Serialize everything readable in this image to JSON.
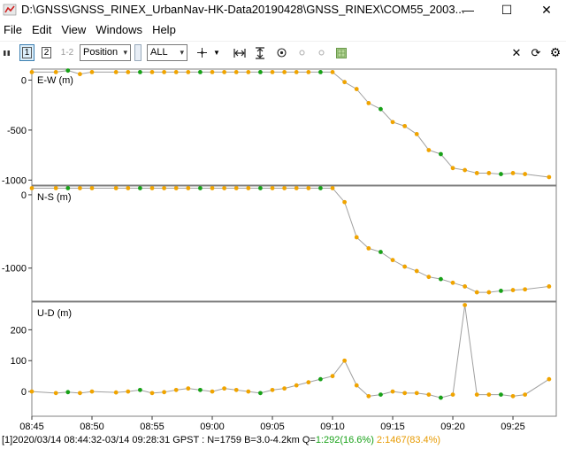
{
  "window": {
    "title": "D:\\GNSS\\GNSS_RINEX_UrbanNav-HK-Data20190428\\GNSS_RINEX\\COM55_2003...",
    "minimize_glyph": "—",
    "maximize_glyph": "☐",
    "close_glyph": "✕"
  },
  "menu": [
    "File",
    "Edit",
    "View",
    "Windows",
    "Help"
  ],
  "toolbar": {
    "plot1_label": "1",
    "plot2_label": "2",
    "plot12_label": "1-2",
    "plot_type_value": "Position",
    "sat_select_value": "ALL",
    "icons": [
      "pause-icon",
      "crosshair-icon",
      "fit-horizontal-icon",
      "fit-vertical-icon",
      "center-icon",
      "dot-icon",
      "map-icon",
      "close-icon",
      "reload-icon",
      "gear-icon"
    ]
  },
  "colors": {
    "q1": "#17a117",
    "q2": "#f0a400",
    "line": "#a0a0a0",
    "axis": "#808080"
  },
  "chart_data": [
    {
      "type": "scatter",
      "title": "E-W (m)",
      "yticks": [
        0,
        -500,
        -1000
      ],
      "ylim": [
        -1050,
        110
      ],
      "x": [
        "08:45",
        "08:47",
        "08:48",
        "08:49",
        "08:50",
        "08:52",
        "08:53",
        "08:54",
        "08:55",
        "08:56",
        "08:57",
        "08:58",
        "08:59",
        "09:00",
        "09:01",
        "09:02",
        "09:03",
        "09:04",
        "09:05",
        "09:06",
        "09:07",
        "09:08",
        "09:09",
        "09:10",
        "09:11",
        "09:12",
        "09:13",
        "09:14",
        "09:15",
        "09:16",
        "09:17",
        "09:18",
        "09:19",
        "09:20",
        "09:21",
        "09:22",
        "09:23",
        "09:24",
        "09:25",
        "09:26",
        "09:28"
      ],
      "series": [
        {
          "values": [
            80,
            80,
            95,
            60,
            80,
            80,
            80,
            80,
            80,
            80,
            80,
            80,
            80,
            80,
            80,
            80,
            80,
            80,
            80,
            80,
            80,
            80,
            80,
            80,
            -20,
            -90,
            -230,
            -290,
            -420,
            -460,
            -540,
            -700,
            -740,
            -880,
            -900,
            -930,
            -930,
            -940,
            -930,
            -940,
            -970
          ]
        }
      ]
    },
    {
      "type": "scatter",
      "title": "N-S (m)",
      "yticks": [
        0,
        -1000
      ],
      "ylim": [
        -1450,
        120
      ],
      "x": [
        "08:45",
        "08:47",
        "08:48",
        "08:49",
        "08:50",
        "08:52",
        "08:53",
        "08:54",
        "08:55",
        "08:56",
        "08:57",
        "08:58",
        "08:59",
        "09:00",
        "09:01",
        "09:02",
        "09:03",
        "09:04",
        "09:05",
        "09:06",
        "09:07",
        "09:08",
        "09:09",
        "09:10",
        "09:11",
        "09:12",
        "09:13",
        "09:14",
        "09:15",
        "09:16",
        "09:17",
        "09:18",
        "09:19",
        "09:20",
        "09:21",
        "09:22",
        "09:23",
        "09:24",
        "09:25",
        "09:26",
        "09:28"
      ],
      "series": [
        {
          "values": [
            90,
            90,
            90,
            90,
            90,
            90,
            90,
            90,
            90,
            90,
            90,
            90,
            90,
            90,
            90,
            90,
            90,
            90,
            90,
            90,
            90,
            90,
            90,
            90,
            -100,
            -580,
            -730,
            -780,
            -890,
            -980,
            -1040,
            -1120,
            -1150,
            -1200,
            -1250,
            -1330,
            -1330,
            -1310,
            -1300,
            -1290,
            -1250
          ]
        }
      ]
    },
    {
      "type": "scatter",
      "title": "U-D (m)",
      "yticks": [
        0,
        100,
        200
      ],
      "ylim": [
        -80,
        290
      ],
      "xticks": [
        "08:45",
        "08:50",
        "08:55",
        "09:00",
        "09:05",
        "09:10",
        "09:15",
        "09:20",
        "09:25"
      ],
      "x": [
        "08:45",
        "08:47",
        "08:48",
        "08:49",
        "08:50",
        "08:52",
        "08:53",
        "08:54",
        "08:55",
        "08:56",
        "08:57",
        "08:58",
        "08:59",
        "09:00",
        "09:01",
        "09:02",
        "09:03",
        "09:04",
        "09:05",
        "09:06",
        "09:07",
        "09:08",
        "09:09",
        "09:10",
        "09:11",
        "09:12",
        "09:13",
        "09:14",
        "09:15",
        "09:16",
        "09:17",
        "09:18",
        "09:19",
        "09:20",
        "09:21",
        "09:22",
        "09:23",
        "09:24",
        "09:25",
        "09:26",
        "09:28"
      ],
      "series": [
        {
          "values": [
            0,
            -5,
            -2,
            -5,
            0,
            -3,
            0,
            5,
            -5,
            -2,
            5,
            10,
            5,
            0,
            10,
            5,
            0,
            -5,
            5,
            10,
            20,
            30,
            40,
            50,
            100,
            20,
            -15,
            -10,
            0,
            -5,
            -5,
            -10,
            -20,
            -10,
            280,
            -10,
            -10,
            -10,
            -15,
            -10,
            40
          ]
        }
      ]
    }
  ],
  "status": {
    "prefix": "[1]2020/03/14 08:44:32-03/14 09:28:31 GPST : N=1759 B=3.0-4.2km Q=",
    "q1": "1:292(16.6%)",
    "q2": "2:1467(83.4%)"
  }
}
